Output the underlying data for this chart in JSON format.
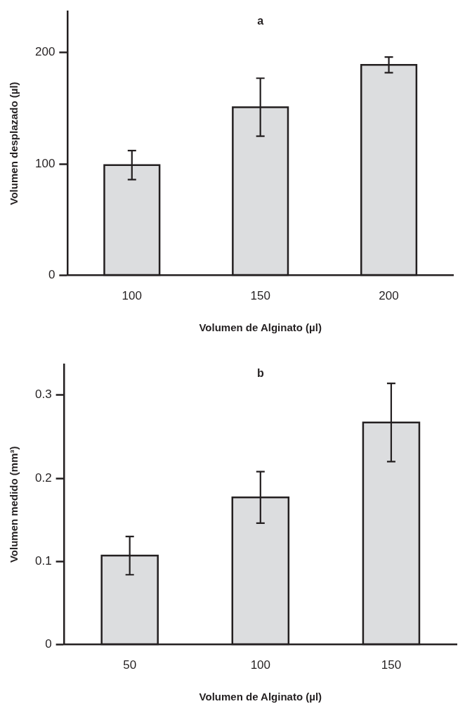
{
  "chart_data": [
    {
      "type": "bar",
      "title": "a",
      "xlabel": "Volumen de Alginato (µl)",
      "ylabel": "Volumen desplazado (µl)",
      "categories": [
        "100",
        "150",
        "200"
      ],
      "values": [
        99,
        151,
        189
      ],
      "errors": [
        13,
        26,
        7
      ],
      "color": "#dcdddf",
      "ylim": [
        0,
        237
      ],
      "yticks": [
        0,
        100,
        200
      ],
      "grid": false,
      "legend": false
    },
    {
      "type": "bar",
      "title": "b",
      "xlabel": "Volumen de Alginato (µl)",
      "ylabel": "Volumen medido (mm³)",
      "categories": [
        "50",
        "100",
        "150"
      ],
      "values": [
        0.107,
        0.177,
        0.267
      ],
      "errors": [
        0.023,
        0.031,
        0.047
      ],
      "color": "#dcdddf",
      "ylim": [
        0,
        0.337
      ],
      "yticks": [
        0,
        0.1,
        0.2,
        0.3
      ],
      "grid": false,
      "legend": false
    }
  ]
}
